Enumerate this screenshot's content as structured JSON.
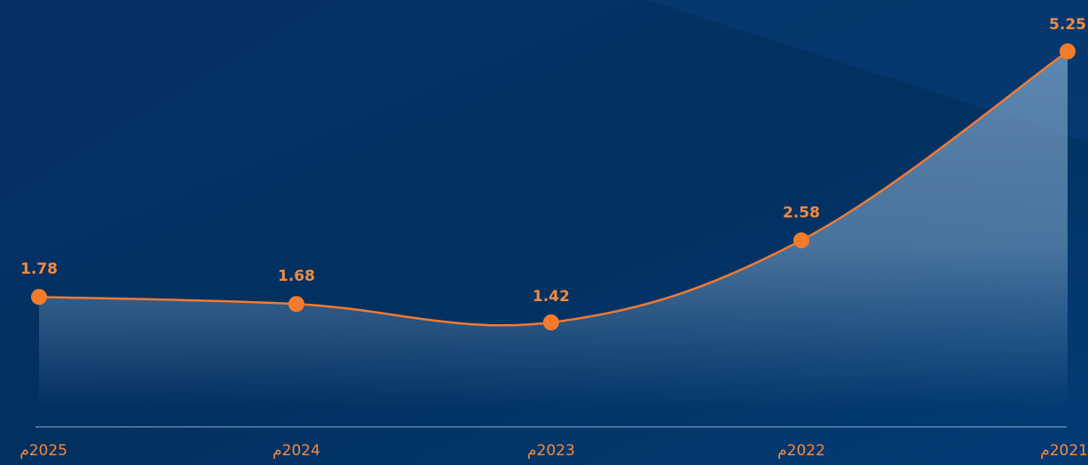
{
  "chart_data": {
    "type": "area",
    "categories": [
      "2025م",
      "2024م",
      "2023م",
      "2022م",
      "2021م"
    ],
    "values": [
      1.78,
      1.68,
      1.42,
      2.58,
      5.25
    ],
    "data_labels": [
      "1.78",
      "1.68",
      "1.42",
      "2.58",
      "5.25"
    ],
    "title": "",
    "xlabel": "",
    "ylabel": "",
    "grid": false,
    "legend": "none"
  },
  "colors": {
    "background": "#033469",
    "line": "#F07A33",
    "marker": "#F47B2C",
    "label": "#F58A3E",
    "area": "#7FA6C8",
    "axis": "#8FAFCF"
  }
}
